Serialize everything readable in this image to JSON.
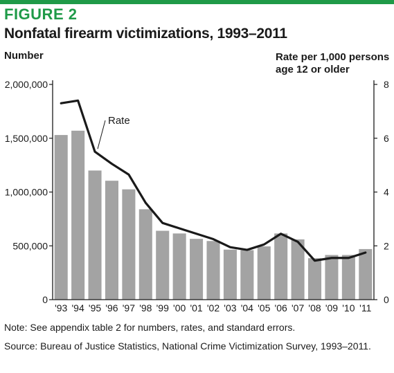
{
  "figure": {
    "label": "FIGURE 2",
    "title": "Nonfatal firearm victimizations, 1993–2011",
    "left_axis_title": "Number",
    "right_axis_title": "Rate per 1,000 persons age 12 or older",
    "note": "Note: See appendix table 2 for numbers, rates, and standard errors.",
    "source": "Source: Bureau of Justice Statistics, National Crime Victimization Survey, 1993–2011."
  },
  "colors": {
    "accent": "#1f9a48",
    "bar": "#a3a3a3",
    "line": "#1a1a1a"
  },
  "chart_data": {
    "type": "bar",
    "categories": [
      "'93",
      "'94",
      "'95",
      "'96",
      "'97",
      "'98",
      "'99",
      "'00",
      "'01",
      "'02",
      "'03",
      "'04",
      "'05",
      "'06",
      "'07",
      "'08",
      "'09",
      "'10",
      "'11"
    ],
    "series": [
      {
        "type": "bar",
        "axis": "left",
        "values": [
          1530000,
          1570000,
          1200000,
          1105000,
          1025000,
          840000,
          640000,
          615000,
          565000,
          545000,
          465000,
          460000,
          495000,
          615000,
          560000,
          385000,
          415000,
          415000,
          470000
        ]
      },
      {
        "type": "line",
        "axis": "right",
        "name": "Rate",
        "values": [
          7.3,
          7.4,
          5.5,
          5.05,
          4.65,
          3.6,
          2.85,
          2.65,
          2.45,
          2.25,
          1.95,
          1.85,
          2.05,
          2.45,
          2.15,
          1.45,
          1.55,
          1.55,
          1.75
        ]
      }
    ],
    "left_axis": {
      "label": "Number",
      "ylim": [
        0,
        2000000
      ],
      "ticks": [
        0,
        500000,
        1000000,
        1500000,
        2000000
      ],
      "tick_labels": [
        "0",
        "500,000",
        "1,000,000",
        "1,500,000",
        "2,000,000"
      ]
    },
    "right_axis": {
      "label": "Rate per 1,000 persons age 12 or older",
      "ylim": [
        0,
        8
      ],
      "ticks": [
        0,
        2,
        4,
        6,
        8
      ],
      "tick_labels": [
        "0",
        "2",
        "4",
        "6",
        "8"
      ]
    },
    "annotations": [
      {
        "text": "Rate",
        "series": "Rate"
      }
    ],
    "grid": false,
    "legend": "none"
  }
}
